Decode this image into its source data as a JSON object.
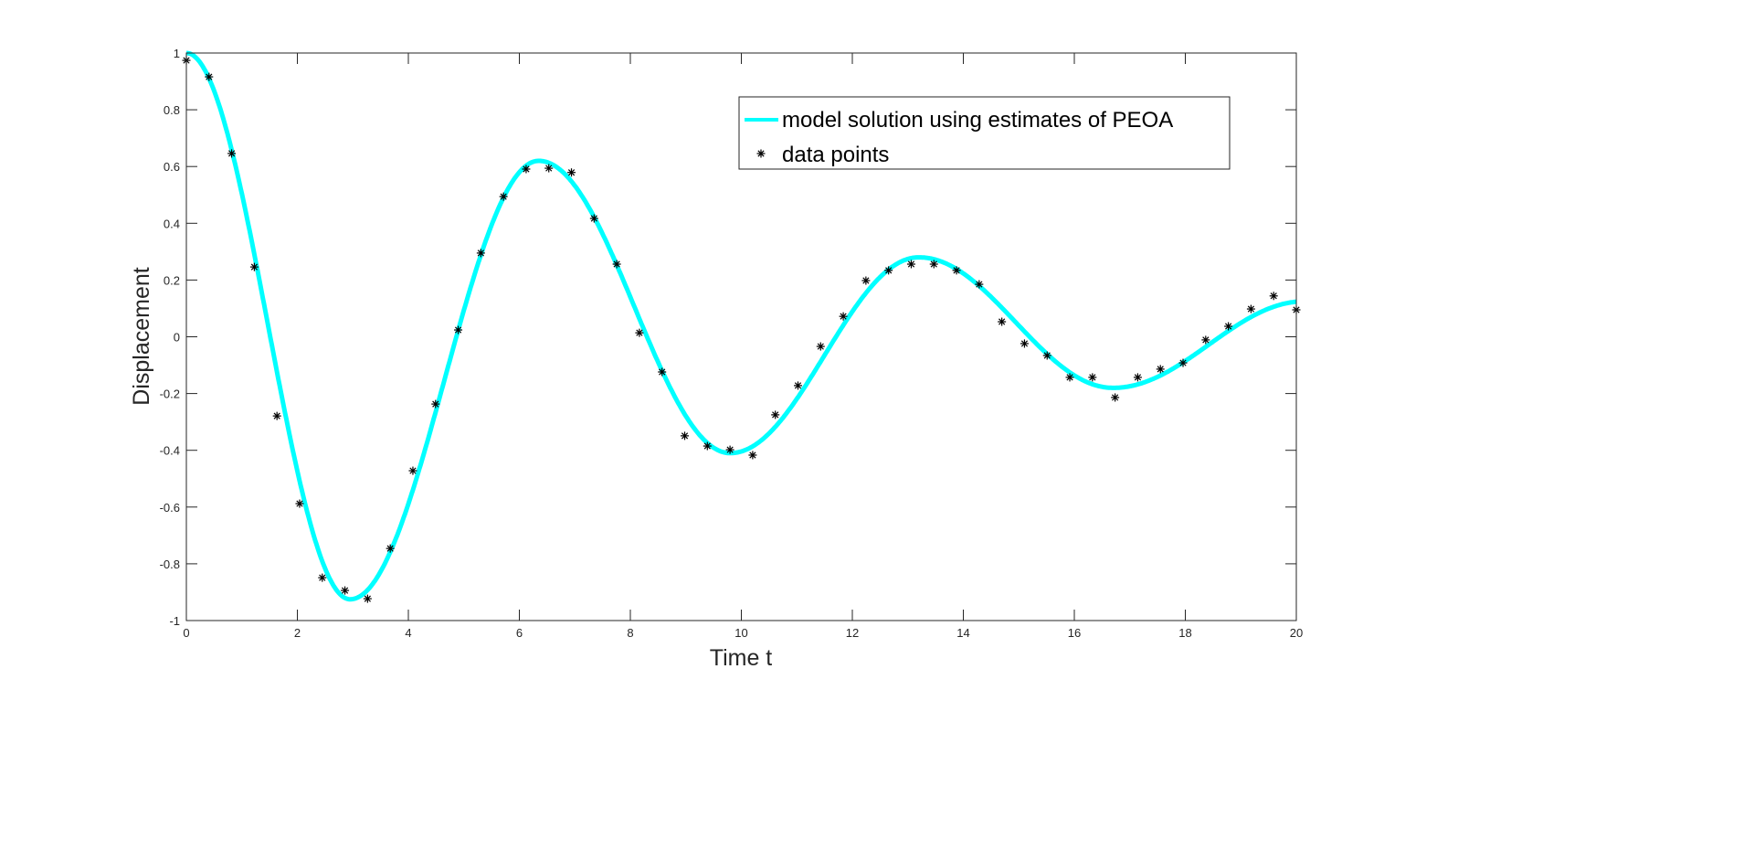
{
  "chart_data": {
    "type": "line",
    "title": "",
    "xlabel": "Time t",
    "ylabel": "Displacement",
    "xlim": [
      0,
      20
    ],
    "ylim": [
      -1,
      1
    ],
    "xticks": [
      0,
      2,
      4,
      6,
      8,
      10,
      12,
      14,
      16,
      18,
      20
    ],
    "xtick_labels": [
      "0",
      "2",
      "4",
      "6",
      "8",
      "10",
      "12",
      "14",
      "16",
      "18",
      "20"
    ],
    "yticks": [
      -1,
      -0.8,
      -0.6,
      -0.4,
      -0.2,
      0,
      0.2,
      0.4,
      0.6,
      0.8,
      1
    ],
    "ytick_labels": [
      "-1",
      "-0.8",
      "-0.6",
      "-0.4",
      "-0.2",
      "0",
      "0.2",
      "0.4",
      "0.6",
      "0.8",
      "1"
    ],
    "grid": false,
    "legend_position": "top-right",
    "series": [
      {
        "name": "model solution using estimates of PEOA",
        "style": "line",
        "color": "#00FFFF",
        "extrema": [
          [
            0,
            1
          ],
          [
            2.95,
            -0.925
          ],
          [
            6.35,
            0.62
          ],
          [
            9.8,
            -0.41
          ],
          [
            13.2,
            0.28
          ],
          [
            16.7,
            -0.18
          ],
          [
            20.15,
            0.125
          ]
        ]
      },
      {
        "name": "data points",
        "style": "marker-asterisk",
        "color": "#000000",
        "x_step": 0.408163,
        "values": [
          0.974,
          0.916,
          0.646,
          0.246,
          -0.279,
          -0.588,
          -0.849,
          -0.894,
          -0.923,
          -0.746,
          -0.472,
          -0.237,
          0.024,
          0.295,
          0.494,
          0.591,
          0.594,
          0.579,
          0.417,
          0.256,
          0.014,
          -0.124,
          -0.349,
          -0.385,
          -0.398,
          -0.417,
          -0.275,
          -0.172,
          -0.034,
          0.072,
          0.198,
          0.234,
          0.256,
          0.256,
          0.234,
          0.185,
          0.053,
          -0.024,
          -0.066,
          -0.143,
          -0.143,
          -0.214,
          -0.143,
          -0.114,
          -0.092,
          -0.011,
          0.037,
          0.098,
          0.144,
          0.095
        ]
      }
    ]
  }
}
